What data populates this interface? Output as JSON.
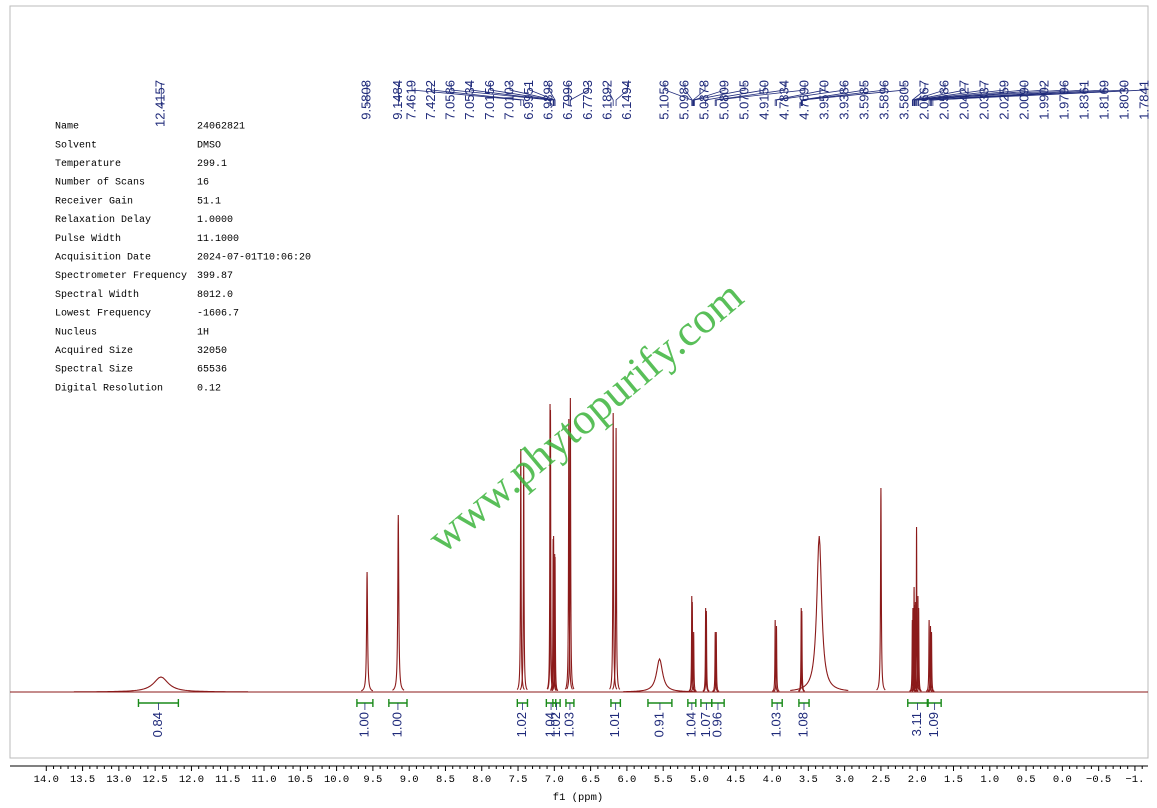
{
  "chart_data": {
    "type": "nmr",
    "xlabel": "f1 (ppm)",
    "xlim": [
      14.5,
      -1.18
    ],
    "ylim": [
      0,
      100
    ],
    "xticks": [
      {
        "value": 14,
        "label": "14.0"
      },
      13.5,
      {
        "value": 13,
        "label": "13.0"
      },
      12.5,
      {
        "value": 12,
        "label": "12.0"
      },
      11.5,
      {
        "value": 11,
        "label": "11.0"
      },
      10.5,
      {
        "value": 10,
        "label": "10.0"
      },
      9.5,
      {
        "value": 9,
        "label": "9.0"
      },
      8.5,
      {
        "value": 8,
        "label": "8.0"
      },
      7.5,
      {
        "value": 7,
        "label": "7.0"
      },
      6.5,
      {
        "value": 6,
        "label": "6.0"
      },
      5.5,
      {
        "value": 5,
        "label": "5.0"
      },
      4.5,
      {
        "value": 4,
        "label": "4.0"
      },
      3.5,
      {
        "value": 3,
        "label": "3.0"
      },
      2.5,
      {
        "value": 2,
        "label": "2.0"
      },
      1.5,
      {
        "value": 1,
        "label": "1.0"
      },
      0.5,
      {
        "value": 0,
        "label": "0.0"
      },
      {
        "value": -0.5,
        "label": "−0.5"
      },
      {
        "value": -1,
        "label": "−1."
      }
    ],
    "color": "#8b1a1a",
    "peaks": {
      "x": [
        12.42,
        9.58,
        9.15,
        7.462,
        7.422,
        7.059,
        7.053,
        7.016,
        7.01,
        6.995,
        6.99,
        6.8,
        6.779,
        6.189,
        6.149,
        5.55,
        5.106,
        5.099,
        5.08,
        4.915,
        4.905,
        4.783,
        4.769,
        3.957,
        3.939,
        3.598,
        3.59,
        3.35,
        2.5,
        2.067,
        2.059,
        2.043,
        2.034,
        2.026,
        2.009,
        1.99,
        1.98,
        1.836,
        1.817,
        1.803
      ],
      "values": [
        5,
        40,
        59,
        81,
        76,
        96,
        94,
        51,
        52,
        46,
        45,
        91,
        98,
        93,
        88,
        11,
        32,
        30,
        20,
        28,
        27,
        20,
        20,
        24,
        22,
        28,
        27,
        52,
        68,
        24,
        28,
        35,
        29,
        30,
        55,
        32,
        28,
        24,
        22,
        20
      ],
      "widths": [
        0.12,
        0.008,
        0.008,
        0.005,
        0.005,
        0.004,
        0.004,
        0.004,
        0.004,
        0.004,
        0.004,
        0.005,
        0.005,
        0.005,
        0.005,
        0.05,
        0.004,
        0.004,
        0.004,
        0.004,
        0.004,
        0.004,
        0.004,
        0.004,
        0.004,
        0.004,
        0.004,
        0.04,
        0.006,
        0.004,
        0.004,
        0.004,
        0.004,
        0.004,
        0.004,
        0.004,
        0.004,
        0.004,
        0.004,
        0.004
      ]
    },
    "peak_labels": [
      "12.4157",
      "9.5808",
      "9.1484",
      "7.4619",
      "7.4222",
      "7.0586",
      "7.0534",
      "7.0156",
      "7.0103",
      "6.9951",
      "6.9898",
      "6.7996",
      "6.7793",
      "6.1892",
      "6.1494",
      "5.1056",
      "5.0986",
      "5.0878",
      "5.0809",
      "5.0705",
      "4.9150",
      "4.7834",
      "4.7690",
      "3.9570",
      "3.9386",
      "3.5985",
      "3.5896",
      "3.5805",
      "2.0667",
      "2.0586",
      "2.0427",
      "2.0337",
      "2.0259",
      "2.0090",
      "1.9902",
      "1.9796",
      "1.8361",
      "1.8169",
      "1.8030",
      "1.7841"
    ],
    "integrals": {
      "ranges": [
        [
          12.73,
          12.18
        ],
        [
          9.72,
          9.5
        ],
        [
          9.28,
          9.03
        ],
        [
          7.51,
          7.37
        ],
        [
          7.11,
          6.98
        ],
        [
          7.02,
          6.92
        ],
        [
          6.84,
          6.73
        ],
        [
          6.22,
          6.09
        ],
        [
          5.71,
          5.38
        ],
        [
          5.16,
          5.05
        ],
        [
          4.98,
          4.83
        ],
        [
          4.83,
          4.66
        ],
        [
          4.0,
          3.86
        ],
        [
          3.63,
          3.49
        ],
        [
          2.13,
          1.86
        ],
        [
          1.85,
          1.67
        ]
      ],
      "values": [
        0.84,
        1,
        1,
        1.02,
        1.04,
        1.02,
        1.03,
        1.01,
        0.91,
        1.04,
        1.07,
        0.96,
        1.03,
        1.08,
        3.11,
        1.09
      ],
      "value_labels": [
        "0.84",
        "1.00",
        "1.00",
        "1.02",
        "1.04",
        "1.02",
        "1.03",
        "1.01",
        "0.91",
        "1.04",
        "1.07",
        "0.96",
        "1.03",
        "1.08",
        "3.11",
        "1.09"
      ],
      "color": "#1a8a1a"
    },
    "parameters": [
      [
        "Name",
        "24062821"
      ],
      [
        "Solvent",
        "DMSO"
      ],
      [
        "Temperature",
        "299.1"
      ],
      [
        "Number of Scans",
        "16"
      ],
      [
        "Receiver Gain",
        "51.1"
      ],
      [
        "Relaxation Delay",
        "1.0000"
      ],
      [
        "Pulse Width",
        "11.1000"
      ],
      [
        "Acquisition Date",
        "2024-07-01T10:06:20"
      ],
      [
        "Spectrometer Frequency",
        "399.87"
      ],
      [
        "Spectral Width",
        "8012.0"
      ],
      [
        "Lowest Frequency",
        "-1606.7"
      ],
      [
        "Nucleus",
        "1H"
      ],
      [
        "Acquired Size",
        "32050"
      ],
      [
        "Spectral Size",
        "65536"
      ],
      [
        "Digital Resolution",
        "0.12"
      ]
    ],
    "watermark": "www.phytopurify.com"
  }
}
